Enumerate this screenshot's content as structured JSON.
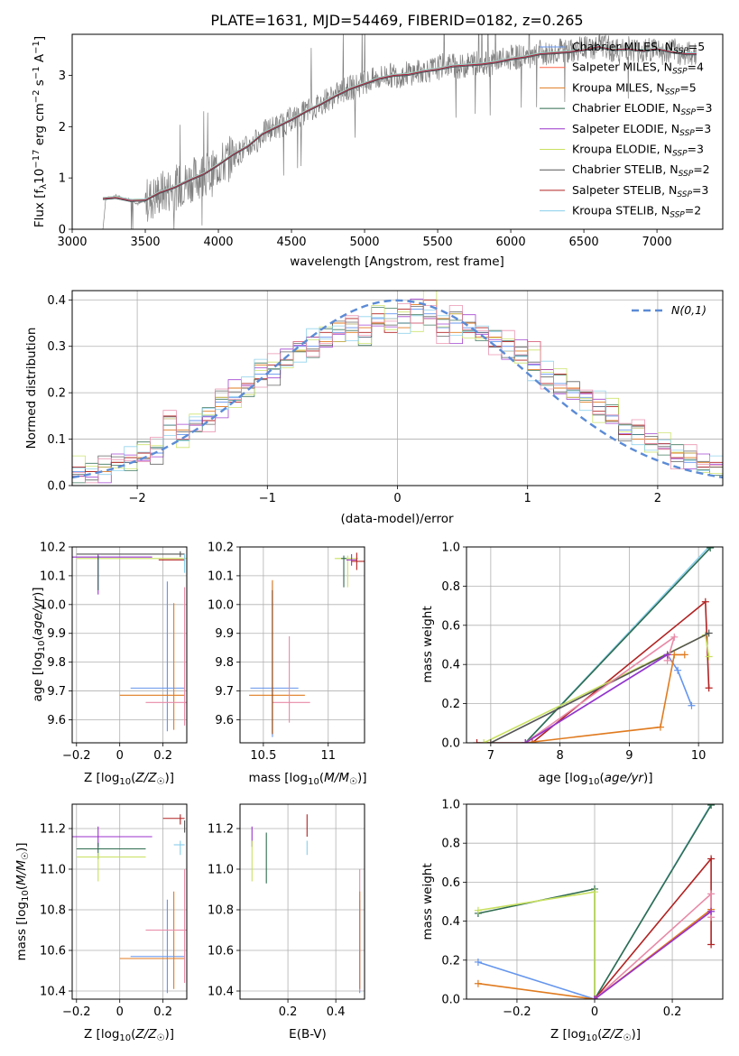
{
  "figure": {
    "title": "PLATE=1631, MJD=54469, FIBERID=0182, z=0.265"
  },
  "chart_data": [
    {
      "type": "line",
      "panel": "spectrum",
      "xlabel": "wavelength [Angstrom, rest frame]",
      "ylabel": "Flux [f_λ 10^-17 erg cm^-2 s^-1 A^-1]",
      "xlim": [
        3000,
        7450
      ],
      "ylim": [
        0,
        3.8
      ],
      "xticks": [
        3000,
        3500,
        4000,
        4500,
        5000,
        5500,
        6000,
        6500,
        7000
      ],
      "yticks": [
        0,
        1,
        2,
        3
      ],
      "grid": false,
      "legend_position": "top-right",
      "data_color": "#808080",
      "data_x": [
        3210,
        3230,
        3260,
        3300,
        3350,
        3400,
        3450,
        3500,
        3550,
        3600,
        3650,
        3700,
        3750,
        3800,
        3850,
        3900,
        3950,
        4000,
        4050,
        4100,
        4150,
        4200,
        4250,
        4300,
        4350,
        4400,
        4450,
        4500,
        4550,
        4600,
        4650,
        4700,
        4750,
        4800,
        4850,
        4900,
        4950,
        5000,
        5050,
        5100,
        5150,
        5200,
        5250,
        5300,
        5350,
        5400,
        5450,
        5500,
        5550,
        5600,
        5650,
        5700,
        5750,
        5800,
        5850,
        5900,
        5950,
        6000,
        6050,
        6100,
        6150,
        6200,
        6250,
        6300,
        6350,
        6400,
        6450,
        6500,
        6550,
        6600,
        6650,
        6700,
        6750,
        6800,
        6850,
        6900,
        6950,
        7000,
        7050,
        7100,
        7150,
        7200,
        7250,
        7270
      ],
      "data_y": [
        0.0,
        0.6,
        0.62,
        0.65,
        0.6,
        0.58,
        0.5,
        0.55,
        0.6,
        0.7,
        0.75,
        0.8,
        0.85,
        0.95,
        1.0,
        1.1,
        1.05,
        1.25,
        1.3,
        1.45,
        1.5,
        1.6,
        1.7,
        1.85,
        1.95,
        2.0,
        2.05,
        2.15,
        2.2,
        2.3,
        2.35,
        2.45,
        2.55,
        2.6,
        2.7,
        2.75,
        2.8,
        2.85,
        2.9,
        2.95,
        3.0,
        3.0,
        3.0,
        3.05,
        3.05,
        3.1,
        3.1,
        3.15,
        3.2,
        3.2,
        3.15,
        3.2,
        3.25,
        3.25,
        3.2,
        3.3,
        3.3,
        3.35,
        3.35,
        3.4,
        3.3,
        3.45,
        3.4,
        3.45,
        3.5,
        3.45,
        3.5,
        3.55,
        3.5,
        3.6,
        3.55,
        3.5,
        3.45,
        3.55,
        3.5,
        3.45,
        3.5,
        3.55,
        3.4,
        3.5,
        3.45,
        3.4,
        3.45,
        3.4
      ],
      "model_x": [
        3210,
        3300,
        3400,
        3500,
        3600,
        3700,
        3800,
        3900,
        4000,
        4100,
        4200,
        4300,
        4400,
        4500,
        4600,
        4700,
        4800,
        4900,
        5000,
        5100,
        5200,
        5300,
        5400,
        5500,
        5600,
        5700,
        5800,
        5900,
        6000,
        6100,
        6200,
        6300,
        6400,
        6500,
        6600,
        6700,
        6800,
        6900,
        7000,
        7100,
        7200,
        7270
      ],
      "model_y": [
        0.6,
        0.62,
        0.56,
        0.57,
        0.72,
        0.82,
        0.96,
        1.08,
        1.26,
        1.46,
        1.62,
        1.86,
        2.0,
        2.14,
        2.3,
        2.44,
        2.6,
        2.74,
        2.84,
        2.94,
        3.0,
        3.02,
        3.08,
        3.12,
        3.18,
        3.2,
        3.22,
        3.26,
        3.32,
        3.36,
        3.42,
        3.44,
        3.46,
        3.5,
        3.56,
        3.5,
        3.52,
        3.48,
        3.52,
        3.46,
        3.42,
        3.42
      ],
      "series": [
        {
          "name": "Chabrier MILES, N_SSP=5",
          "color": "#6495ed"
        },
        {
          "name": "Salpeter MILES, N_SSP=4",
          "color": "#ff6347"
        },
        {
          "name": "Kroupa MILES, N_SSP=5",
          "color": "#e07b20"
        },
        {
          "name": "Chabrier ELODIE, N_SSP=3",
          "color": "#2e6b4f"
        },
        {
          "name": "Salpeter ELODIE, N_SSP=3",
          "color": "#9932cc"
        },
        {
          "name": "Kroupa ELODIE, N_SSP=3",
          "color": "#c8e060"
        },
        {
          "name": "Chabrier STELIB, N_SSP=2",
          "color": "#555555"
        },
        {
          "name": "Salpeter STELIB, N_SSP=3",
          "color": "#b22222"
        },
        {
          "name": "Kroupa STELIB, N_SSP=2",
          "color": "#87ceeb"
        }
      ]
    },
    {
      "type": "line",
      "panel": "residual-histogram",
      "xlabel": "(data-model)/error",
      "ylabel": "Normed distribution",
      "xlim": [
        -2.5,
        2.5
      ],
      "ylim": [
        0,
        0.42
      ],
      "xticks": [
        -2,
        -1,
        0,
        1,
        2
      ],
      "yticks": [
        0.0,
        0.1,
        0.2,
        0.3,
        0.4
      ],
      "grid": true,
      "legend_position": "top-right",
      "gaussian_label": "N(0,1)",
      "gaussian_color": "#5b8bd6",
      "bin_edges": [
        -2.5,
        -2.4,
        -2.3,
        -2.2,
        -2.1,
        -2.0,
        -1.9,
        -1.8,
        -1.7,
        -1.6,
        -1.5,
        -1.4,
        -1.3,
        -1.2,
        -1.1,
        -1.0,
        -0.9,
        -0.8,
        -0.7,
        -0.6,
        -0.5,
        -0.4,
        -0.3,
        -0.2,
        -0.1,
        0.0,
        0.1,
        0.2,
        0.3,
        0.4,
        0.5,
        0.6,
        0.7,
        0.8,
        0.9,
        1.0,
        1.1,
        1.2,
        1.3,
        1.4,
        1.5,
        1.6,
        1.7,
        1.8,
        1.9,
        2.0,
        2.1,
        2.2,
        2.3,
        2.4,
        2.5
      ],
      "series": [
        {
          "color": "#6495ed",
          "values": [
            0.03,
            0.03,
            0.04,
            0.05,
            0.05,
            0.07,
            0.07,
            0.13,
            0.11,
            0.14,
            0.15,
            0.18,
            0.19,
            0.21,
            0.24,
            0.24,
            0.27,
            0.3,
            0.3,
            0.32,
            0.33,
            0.34,
            0.32,
            0.36,
            0.37,
            0.35,
            0.38,
            0.37,
            0.34,
            0.35,
            0.34,
            0.33,
            0.31,
            0.3,
            0.28,
            0.26,
            0.24,
            0.22,
            0.2,
            0.19,
            0.17,
            0.15,
            0.12,
            0.11,
            0.1,
            0.09,
            0.07,
            0.05,
            0.04,
            0.04
          ]
        },
        {
          "color": "#e07b20",
          "values": [
            0.02,
            0.03,
            0.03,
            0.05,
            0.06,
            0.06,
            0.08,
            0.12,
            0.12,
            0.13,
            0.16,
            0.17,
            0.21,
            0.21,
            0.26,
            0.25,
            0.27,
            0.29,
            0.32,
            0.31,
            0.35,
            0.33,
            0.34,
            0.35,
            0.36,
            0.34,
            0.39,
            0.36,
            0.36,
            0.33,
            0.35,
            0.32,
            0.32,
            0.29,
            0.29,
            0.25,
            0.25,
            0.21,
            0.21,
            0.18,
            0.18,
            0.14,
            0.13,
            0.1,
            0.1,
            0.08,
            0.07,
            0.06,
            0.05,
            0.04
          ]
        },
        {
          "color": "#b22222",
          "values": [
            0.04,
            0.03,
            0.04,
            0.05,
            0.06,
            0.07,
            0.08,
            0.15,
            0.1,
            0.13,
            0.14,
            0.19,
            0.18,
            0.22,
            0.23,
            0.26,
            0.26,
            0.31,
            0.29,
            0.33,
            0.31,
            0.36,
            0.33,
            0.37,
            0.33,
            0.38,
            0.35,
            0.4,
            0.33,
            0.37,
            0.33,
            0.34,
            0.3,
            0.31,
            0.27,
            0.31,
            0.22,
            0.24,
            0.19,
            0.2,
            0.16,
            0.17,
            0.11,
            0.13,
            0.09,
            0.09,
            0.06,
            0.07,
            0.04,
            0.05
          ]
        }
      ]
    },
    {
      "type": "scatter",
      "panel": "age-vs-metallicity",
      "xlabel": "Z [log10(Z/Z☉)]",
      "ylabel": "age [log10(age/yr)]",
      "xlim": [
        -0.22,
        0.31
      ],
      "ylim": [
        9.52,
        10.2
      ],
      "xticks": [
        -0.2,
        0.0,
        0.2
      ],
      "yticks": [
        9.6,
        9.7,
        9.8,
        9.9,
        10.0,
        10.1,
        10.2
      ],
      "grid": true
    },
    {
      "type": "scatter",
      "panel": "age-vs-mass",
      "xlabel": "mass [log10(M/M☉)]",
      "ylabel": "",
      "xlim": [
        10.32,
        11.28
      ],
      "ylim": [
        9.52,
        10.2
      ],
      "xticks": [
        10.5,
        11.0
      ],
      "yticks": [
        9.6,
        9.7,
        9.8,
        9.9,
        10.0,
        10.1,
        10.2
      ],
      "grid": true
    },
    {
      "type": "line",
      "panel": "mass-weight-vs-age",
      "xlabel": "age [log10(age/yr)]",
      "ylabel": "mass weight",
      "xlim": [
        6.65,
        10.35
      ],
      "ylim": [
        0,
        1.0
      ],
      "xticks": [
        7,
        8,
        9,
        10
      ],
      "yticks": [
        0.0,
        0.2,
        0.4,
        0.6,
        0.8,
        1.0
      ],
      "grid": true
    },
    {
      "type": "scatter",
      "panel": "mass-vs-metallicity",
      "xlabel": "Z [log10(Z/Z☉)]",
      "ylabel": "mass [log10(M/M☉)]",
      "xlim": [
        -0.22,
        0.31
      ],
      "ylim": [
        10.36,
        11.32
      ],
      "xticks": [
        -0.2,
        0.0,
        0.2
      ],
      "yticks": [
        10.4,
        10.6,
        10.8,
        11.0,
        11.2
      ],
      "grid": true
    },
    {
      "type": "scatter",
      "panel": "mass-vs-extinction",
      "xlabel": "E(B-V)",
      "ylabel": "",
      "xlim": [
        0.0,
        0.52
      ],
      "ylim": [
        10.36,
        11.32
      ],
      "xticks": [
        0.2,
        0.4
      ],
      "yticks": [
        10.4,
        10.6,
        10.8,
        11.0,
        11.2
      ],
      "grid": true
    },
    {
      "type": "line",
      "panel": "mass-weight-vs-metallicity",
      "xlabel": "Z [log10(Z/Z☉)]",
      "ylabel": "mass weight",
      "xlim": [
        -0.33,
        0.33
      ],
      "ylim": [
        0,
        1.0
      ],
      "xticks": [
        -0.2,
        0.0,
        0.2
      ],
      "yticks": [
        0.0,
        0.2,
        0.4,
        0.6,
        0.8,
        1.0
      ],
      "grid": true
    }
  ]
}
